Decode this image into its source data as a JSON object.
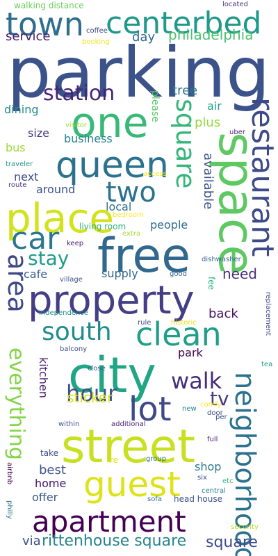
{
  "word_cloud": {
    "words": [
      {
        "id": "parking",
        "text": "parking",
        "color": "#3b528b",
        "vertical": false
      },
      {
        "id": "street",
        "text": "street",
        "color": "#c8e020",
        "vertical": false
      },
      {
        "id": "city",
        "text": "city",
        "color": "#21a685",
        "vertical": false
      },
      {
        "id": "free",
        "text": "free",
        "color": "#31688e",
        "vertical": false
      },
      {
        "id": "property",
        "text": "property",
        "color": "#433e85",
        "vertical": false
      },
      {
        "id": "queen",
        "text": "queen",
        "color": "#2c728e",
        "vertical": false
      },
      {
        "id": "one",
        "text": "one",
        "color": "#38b977",
        "vertical": false
      },
      {
        "id": "guest",
        "text": "guest",
        "color": "#dde318",
        "vertical": false
      },
      {
        "id": "apartment",
        "text": "apartment",
        "color": "#440154",
        "vertical": false
      },
      {
        "id": "space",
        "text": "space",
        "color": "#5ec962",
        "vertical": true
      },
      {
        "id": "neighborhood",
        "text": "neighborhood",
        "color": "#2c728e",
        "vertical": true
      },
      {
        "id": "place",
        "text": "place",
        "color": "#d2e21b",
        "vertical": false
      },
      {
        "id": "car",
        "text": "car",
        "color": "#2a788e",
        "vertical": false
      },
      {
        "id": "lot",
        "text": "lot",
        "color": "#3e4989",
        "vertical": false
      },
      {
        "id": "clean",
        "text": "clean",
        "color": "#1f9f88",
        "vertical": false
      },
      {
        "id": "restaurant",
        "text": "restaurant",
        "color": "#3e4a89",
        "vertical": true
      },
      {
        "id": "everything",
        "text": "everything",
        "color": "#84d44b",
        "vertical": true
      },
      {
        "id": "square-1",
        "text": "square",
        "color": "#35b779",
        "vertical": true
      },
      {
        "id": "town",
        "text": "town",
        "color": "#2e6e8e",
        "vertical": false
      },
      {
        "id": "centerbed",
        "text": "centerbed",
        "color": "#1f998a",
        "vertical": false
      },
      {
        "id": "two",
        "text": "two",
        "color": "#2c728e",
        "vertical": false
      },
      {
        "id": "area",
        "text": "area",
        "color": "#3e4989",
        "vertical": true
      },
      {
        "id": "south",
        "text": "south",
        "color": "#228c8d",
        "vertical": false
      },
      {
        "id": "hour",
        "text": "hour",
        "color": "#3b518b",
        "vertical": false
      },
      {
        "id": "walk",
        "text": "walk",
        "color": "#472c7a",
        "vertical": false
      },
      {
        "id": "station",
        "text": "station",
        "color": "#482475",
        "vertical": false
      },
      {
        "id": "stay",
        "text": "stay",
        "color": "#1e9b8a",
        "vertical": false
      },
      {
        "id": "tv",
        "text": "tv",
        "color": "#443983",
        "vertical": false
      },
      {
        "id": "rittenhouse-square",
        "text": "rittenhouse square",
        "color": "#25858e",
        "vertical": false
      },
      {
        "id": "philadelphia",
        "text": "philadelphia",
        "color": "#48c16e",
        "vertical": false
      },
      {
        "id": "service",
        "text": "service",
        "color": "#481b6d",
        "vertical": false
      },
      {
        "id": "day",
        "text": "day",
        "color": "#30688e",
        "vertical": false
      },
      {
        "id": "walking-distance",
        "text": "walking distance",
        "color": "#6ccd5a",
        "vertical": false
      },
      {
        "id": "coffee",
        "text": "coffee",
        "color": "#3f4788",
        "vertical": false
      },
      {
        "id": "booking",
        "text": "booking",
        "color": "#f1e51d",
        "vertical": false
      },
      {
        "id": "located",
        "text": "located",
        "color": "#46337f",
        "vertical": false
      },
      {
        "id": "tree",
        "text": "tree",
        "color": "#2a788e",
        "vertical": false
      },
      {
        "id": "air",
        "text": "air",
        "color": "#22a884",
        "vertical": false
      },
      {
        "id": "please",
        "text": "please",
        "color": "#5ac864",
        "vertical": true
      },
      {
        "id": "dining",
        "text": "dining",
        "color": "#23898e",
        "vertical": false
      },
      {
        "id": "plus",
        "text": "plus",
        "color": "#95d840",
        "vertical": false
      },
      {
        "id": "size",
        "text": "size",
        "color": "#453781",
        "vertical": false
      },
      {
        "id": "visitor",
        "text": "visitor",
        "color": "#a2da37",
        "vertical": false
      },
      {
        "id": "uber",
        "text": "uber",
        "color": "#482878",
        "vertical": false
      },
      {
        "id": "business",
        "text": "business",
        "color": "#26828e",
        "vertical": false
      },
      {
        "id": "bus",
        "text": "bus",
        "color": "#a0da39",
        "vertical": false
      },
      {
        "id": "available",
        "text": "available",
        "color": "#3b528b",
        "vertical": true
      },
      {
        "id": "traveler",
        "text": "traveler",
        "color": "#1f958b",
        "vertical": false
      },
      {
        "id": "next",
        "text": "next",
        "color": "#3f4889",
        "vertical": false
      },
      {
        "id": "access",
        "text": "access",
        "color": "#f4e61e",
        "vertical": false
      },
      {
        "id": "route",
        "text": "route",
        "color": "#453882",
        "vertical": false
      },
      {
        "id": "around",
        "text": "around",
        "color": "#3b528b",
        "vertical": false
      },
      {
        "id": "local",
        "text": "local",
        "color": "#2d708e",
        "vertical": false
      },
      {
        "id": "bedroom",
        "text": "bedroom",
        "color": "#fde725",
        "vertical": false
      },
      {
        "id": "living-room",
        "text": "living room",
        "color": "#30b57a",
        "vertical": false
      },
      {
        "id": "people",
        "text": "people",
        "color": "#2f6c8e",
        "vertical": false
      },
      {
        "id": "extra",
        "text": "extra",
        "color": "#aadc32",
        "vertical": false
      },
      {
        "id": "keep",
        "text": "keep",
        "color": "#481769",
        "vertical": false
      },
      {
        "id": "supply",
        "text": "supply",
        "color": "#2f6b8e",
        "vertical": false
      },
      {
        "id": "dishwasher",
        "text": "dishwasher",
        "color": "#32658e",
        "vertical": false
      },
      {
        "id": "cafe",
        "text": "cafe",
        "color": "#375b8d",
        "vertical": false
      },
      {
        "id": "village",
        "text": "village",
        "color": "#3b528b",
        "vertical": false
      },
      {
        "id": "good",
        "text": "good",
        "color": "#33628d",
        "vertical": false
      },
      {
        "id": "need",
        "text": "need",
        "color": "#472d7b",
        "vertical": false
      },
      {
        "id": "fee",
        "text": "fee",
        "color": "#29af7f",
        "vertical": true
      },
      {
        "id": "replacement",
        "text": "replacement",
        "color": "#3e4a89",
        "vertical": true
      },
      {
        "id": "back",
        "text": "back",
        "color": "#471063",
        "vertical": false
      },
      {
        "id": "independence",
        "text": "independence",
        "color": "#20928c",
        "vertical": false
      },
      {
        "id": "rule",
        "text": "rule",
        "color": "#3e4989",
        "vertical": false
      },
      {
        "id": "historic",
        "text": "historic",
        "color": "#e2e418",
        "vertical": false
      },
      {
        "id": "kitchen",
        "text": "kitchen",
        "color": "#481f70",
        "vertical": true
      },
      {
        "id": "balcony",
        "text": "balcony",
        "color": "#3c4f8a",
        "vertical": false
      },
      {
        "id": "park",
        "text": "park",
        "color": "#440154",
        "vertical": false
      },
      {
        "id": "tea",
        "text": "tea",
        "color": "#1f998a",
        "vertical": false
      },
      {
        "id": "close",
        "text": "close",
        "color": "#355f8d",
        "vertical": false
      },
      {
        "id": "sticker",
        "text": "sticker",
        "color": "#d8e219",
        "vertical": false
      },
      {
        "id": "comfy",
        "text": "comfy",
        "color": "#fde725",
        "vertical": false
      },
      {
        "id": "per",
        "text": "per",
        "color": "#3b528b",
        "vertical": false
      },
      {
        "id": "new",
        "text": "new",
        "color": "#24878e",
        "vertical": false
      },
      {
        "id": "door",
        "text": "door",
        "color": "#3f4788",
        "vertical": false
      },
      {
        "id": "within",
        "text": "within",
        "color": "#3b518b",
        "vertical": false
      },
      {
        "id": "additional",
        "text": "additional",
        "color": "#482677",
        "vertical": false
      },
      {
        "id": "full",
        "text": "full",
        "color": "#481a6c",
        "vertical": false
      },
      {
        "id": "take",
        "text": "take",
        "color": "#3b518b",
        "vertical": false
      },
      {
        "id": "best",
        "text": "best",
        "color": "#3b528b",
        "vertical": false
      },
      {
        "id": "re",
        "text": "re",
        "color": "#e7e419",
        "vertical": false
      },
      {
        "id": "group",
        "text": "group",
        "color": "#2d708e",
        "vertical": false
      },
      {
        "id": "shop",
        "text": "shop",
        "color": "#2a788e",
        "vertical": false
      },
      {
        "id": "airbnb",
        "text": "airbnb",
        "color": "#440154",
        "vertical": true
      },
      {
        "id": "home",
        "text": "home",
        "color": "#481467",
        "vertical": false
      },
      {
        "id": "six",
        "text": "six",
        "color": "#3e4a89",
        "vertical": false
      },
      {
        "id": "etc",
        "text": "etc",
        "color": "#34b679",
        "vertical": false
      },
      {
        "id": "offer",
        "text": "offer",
        "color": "#39568c",
        "vertical": false
      },
      {
        "id": "central",
        "text": "central",
        "color": "#26828e",
        "vertical": false
      },
      {
        "id": "philly",
        "text": "philly",
        "color": "#2b758e",
        "vertical": true
      },
      {
        "id": "sofa",
        "text": "sofa",
        "color": "#2c728e",
        "vertical": false
      },
      {
        "id": "head-house",
        "text": "head house",
        "color": "#3b528b",
        "vertical": false
      },
      {
        "id": "security",
        "text": "security",
        "color": "#b5de2b",
        "vertical": false
      },
      {
        "id": "via",
        "text": "via",
        "color": "#3b528b",
        "vertical": false
      },
      {
        "id": "square-2",
        "text": "square",
        "color": "#3e4a89",
        "vertical": false
      }
    ]
  }
}
